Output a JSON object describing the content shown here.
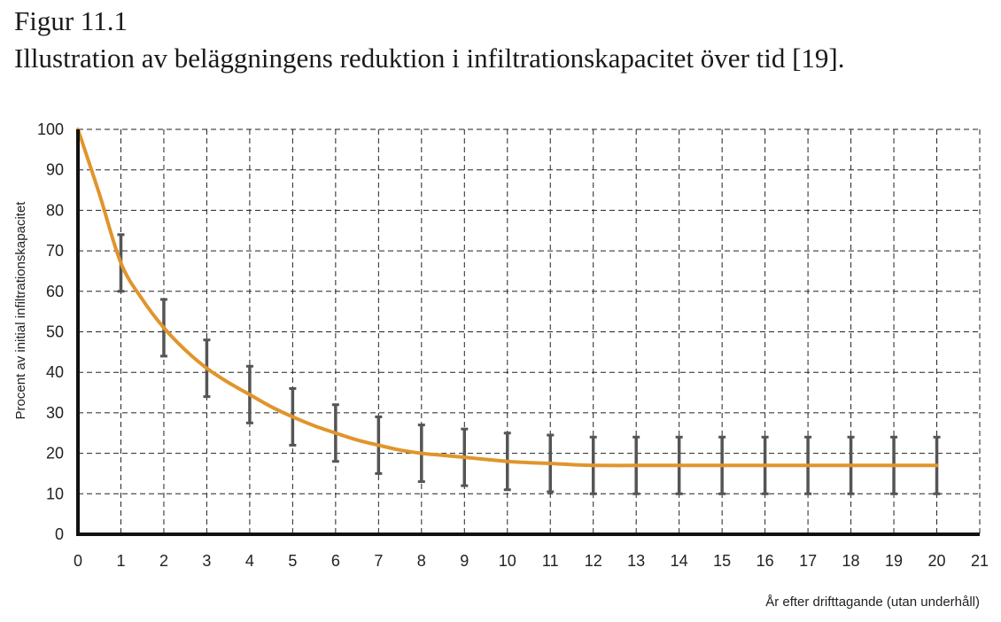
{
  "figure": {
    "label": "Figur 11.1",
    "title": "Illustration av beläggningens reduktion i infiltrationskapacitet över tid [19]."
  },
  "chart_data": {
    "type": "line",
    "xlabel": "År efter drifttagande (utan underhåll)",
    "ylabel": "Procent av initial infiltrationskapacitet",
    "xlim": [
      0,
      21
    ],
    "ylim": [
      0,
      100
    ],
    "xticks": [
      0,
      1,
      2,
      3,
      4,
      5,
      6,
      7,
      8,
      9,
      10,
      11,
      12,
      13,
      14,
      15,
      16,
      17,
      18,
      19,
      20,
      21
    ],
    "yticks": [
      0,
      10,
      20,
      30,
      40,
      50,
      60,
      70,
      80,
      90,
      100
    ],
    "grid": true,
    "colors": {
      "curve": "#e0952c",
      "error_bars": "#555555",
      "axes": "#111111",
      "grid": "#222222"
    },
    "series": [
      {
        "x": [
          0,
          0.5,
          1,
          1.5,
          2,
          2.5,
          3,
          3.5,
          4,
          4.5,
          5,
          5.5,
          6,
          6.5,
          7,
          7.5,
          8,
          8.5,
          9,
          9.5,
          10,
          10.5,
          11,
          11.5,
          12,
          13,
          14,
          15,
          16,
          17,
          18,
          19,
          20
        ],
        "y": [
          100,
          84,
          67,
          58,
          51,
          45.5,
          41,
          37.5,
          34.5,
          31.5,
          29,
          26.8,
          25,
          23.3,
          22,
          20.8,
          20,
          19.5,
          19,
          18.5,
          18,
          17.7,
          17.5,
          17.2,
          17,
          17,
          17,
          17,
          17,
          17,
          17,
          17,
          17
        ]
      }
    ],
    "error_bars": [
      {
        "x": 1,
        "low": 60,
        "high": 74
      },
      {
        "x": 2,
        "low": 44,
        "high": 58
      },
      {
        "x": 3,
        "low": 34,
        "high": 48
      },
      {
        "x": 4,
        "low": 27.5,
        "high": 41.5
      },
      {
        "x": 5,
        "low": 22,
        "high": 36
      },
      {
        "x": 6,
        "low": 18,
        "high": 32
      },
      {
        "x": 7,
        "low": 15,
        "high": 29
      },
      {
        "x": 8,
        "low": 13,
        "high": 27
      },
      {
        "x": 9,
        "low": 12,
        "high": 26
      },
      {
        "x": 10,
        "low": 11,
        "high": 25
      },
      {
        "x": 11,
        "low": 10.5,
        "high": 24.5
      },
      {
        "x": 12,
        "low": 10,
        "high": 24
      },
      {
        "x": 13,
        "low": 10,
        "high": 24
      },
      {
        "x": 14,
        "low": 10,
        "high": 24
      },
      {
        "x": 15,
        "low": 10,
        "high": 24
      },
      {
        "x": 16,
        "low": 10,
        "high": 24
      },
      {
        "x": 17,
        "low": 10,
        "high": 24
      },
      {
        "x": 18,
        "low": 10,
        "high": 24
      },
      {
        "x": 19,
        "low": 10,
        "high": 24
      },
      {
        "x": 20,
        "low": 10,
        "high": 24
      }
    ]
  }
}
